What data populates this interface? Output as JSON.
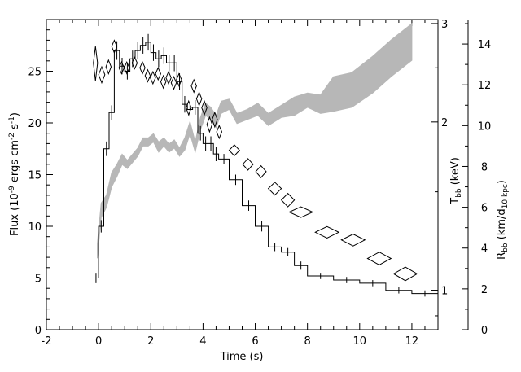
{
  "chart_data": {
    "type": "line",
    "xlabel": "Time (s)",
    "ylabel": {
      "pre": "Flux (10",
      "exp1": "-9",
      "mid1": " ergs cm",
      "exp2": "-2",
      "mid2": " s",
      "exp3": "-1",
      "post": ")"
    },
    "xlim": [
      -2,
      13
    ],
    "ylim": [
      0,
      30
    ],
    "x_ticks": [
      "-2",
      "0",
      "2",
      "4",
      "6",
      "8",
      "10",
      "12"
    ],
    "x_tick_values": [
      -2,
      0,
      2,
      4,
      6,
      8,
      10,
      12
    ],
    "y_ticks": [
      "0",
      "5",
      "10",
      "15",
      "20",
      "25"
    ],
    "y_tick_values": [
      0,
      5,
      10,
      15,
      20,
      25
    ],
    "right_axis_tbb": {
      "label": {
        "base": "T",
        "sub": "bb",
        "rest": " (keV)"
      },
      "scale": "log",
      "range": [
        0.85,
        3.05
      ],
      "ticks": [
        "1",
        "2",
        "3"
      ],
      "tick_values": [
        1,
        2,
        3
      ]
    },
    "right_axis_rbb": {
      "label": {
        "base": "R",
        "sub": "bb",
        "rest": " (km/d",
        "sub2": "10 kpc",
        "rest2": ")"
      },
      "range": [
        0,
        15.2
      ],
      "ticks": [
        "0",
        "2",
        "4",
        "6",
        "8",
        "10",
        "12",
        "14"
      ],
      "tick_values": [
        0,
        2,
        4,
        6,
        8,
        10,
        12,
        14
      ]
    },
    "series": [
      {
        "kind": "flux_step",
        "points": [
          [
            -0.2,
            0.0,
            5.0,
            0.5
          ],
          [
            0.0,
            0.2,
            10.0,
            0.6
          ],
          [
            0.2,
            0.4,
            17.5,
            0.7
          ],
          [
            0.4,
            0.6,
            21.0,
            0.7
          ],
          [
            0.6,
            0.8,
            27.0,
            0.9
          ],
          [
            0.8,
            1.0,
            25.5,
            0.8
          ],
          [
            1.0,
            1.2,
            25.0,
            0.8
          ],
          [
            1.2,
            1.4,
            26.2,
            0.8
          ],
          [
            1.4,
            1.6,
            27.0,
            0.8
          ],
          [
            1.6,
            1.8,
            27.5,
            0.8
          ],
          [
            1.8,
            2.0,
            27.8,
            0.8
          ],
          [
            2.0,
            2.2,
            26.8,
            0.8
          ],
          [
            2.2,
            2.4,
            26.2,
            0.8
          ],
          [
            2.4,
            2.6,
            26.5,
            0.8
          ],
          [
            2.6,
            2.8,
            25.8,
            0.8
          ],
          [
            2.8,
            3.0,
            25.8,
            0.8
          ],
          [
            3.0,
            3.2,
            24.0,
            0.8
          ],
          [
            3.2,
            3.4,
            21.8,
            0.8
          ],
          [
            3.4,
            3.6,
            21.3,
            0.7
          ],
          [
            3.6,
            3.8,
            21.5,
            0.7
          ],
          [
            3.8,
            4.0,
            19.0,
            0.7
          ],
          [
            4.0,
            4.2,
            18.0,
            0.7
          ],
          [
            4.2,
            4.4,
            18.0,
            0.7
          ],
          [
            4.4,
            4.6,
            17.0,
            0.7
          ],
          [
            4.6,
            5.0,
            16.5,
            0.5
          ],
          [
            5.0,
            5.5,
            14.5,
            0.5
          ],
          [
            5.5,
            6.0,
            12.0,
            0.5
          ],
          [
            6.0,
            6.5,
            10.0,
            0.5
          ],
          [
            6.5,
            7.0,
            8.0,
            0.4
          ],
          [
            7.0,
            7.5,
            7.5,
            0.4
          ],
          [
            7.5,
            8.0,
            6.2,
            0.4
          ],
          [
            8.0,
            9.0,
            5.2,
            0.3
          ],
          [
            9.0,
            10.0,
            4.8,
            0.3
          ],
          [
            10.0,
            11.0,
            4.5,
            0.3
          ],
          [
            11.0,
            12.0,
            3.8,
            0.3
          ],
          [
            12.0,
            13.0,
            3.5,
            0.3
          ]
        ]
      },
      {
        "kind": "rbb_band",
        "axis": "right_rbb",
        "points": [
          [
            -0.05,
            3.5,
            4.2
          ],
          [
            0.1,
            5.5,
            6.2
          ],
          [
            0.3,
            6.0,
            6.6
          ],
          [
            0.5,
            7.0,
            7.7
          ],
          [
            0.7,
            7.5,
            8.1
          ],
          [
            0.9,
            8.1,
            8.6
          ],
          [
            1.1,
            7.9,
            8.3
          ],
          [
            1.3,
            8.2,
            8.6
          ],
          [
            1.5,
            8.5,
            8.9
          ],
          [
            1.7,
            9.0,
            9.4
          ],
          [
            1.9,
            9.0,
            9.4
          ],
          [
            2.1,
            9.2,
            9.6
          ],
          [
            2.3,
            8.7,
            9.2
          ],
          [
            2.5,
            9.0,
            9.4
          ],
          [
            2.7,
            8.7,
            9.1
          ],
          [
            2.9,
            8.9,
            9.3
          ],
          [
            3.1,
            8.5,
            8.9
          ],
          [
            3.3,
            8.8,
            9.4
          ],
          [
            3.5,
            9.6,
            10.2
          ],
          [
            3.7,
            8.7,
            9.2
          ],
          [
            3.9,
            9.8,
            10.4
          ],
          [
            4.1,
            10.5,
            11.1
          ],
          [
            4.3,
            10.3,
            10.9
          ],
          [
            4.5,
            9.9,
            10.5
          ],
          [
            4.7,
            10.6,
            11.2
          ],
          [
            5.0,
            10.8,
            11.3
          ],
          [
            5.3,
            10.1,
            10.6
          ],
          [
            5.7,
            10.3,
            10.8
          ],
          [
            6.1,
            10.5,
            11.1
          ],
          [
            6.5,
            10.0,
            10.6
          ],
          [
            7.0,
            10.4,
            11.0
          ],
          [
            7.5,
            10.5,
            11.4
          ],
          [
            8.0,
            10.9,
            11.6
          ],
          [
            8.5,
            10.6,
            11.5
          ],
          [
            9.0,
            10.7,
            12.4
          ],
          [
            9.7,
            10.9,
            12.6
          ],
          [
            10.5,
            11.6,
            13.4
          ],
          [
            11.2,
            12.4,
            14.2
          ],
          [
            12.0,
            13.2,
            15.0
          ]
        ]
      },
      {
        "kind": "tbb_diamonds",
        "axis": "right_tbb",
        "points": [
          [
            -0.12,
            0.08,
            2.55,
            0.18
          ],
          [
            0.12,
            0.12,
            2.43,
            0.08
          ],
          [
            0.38,
            0.1,
            2.51,
            0.07
          ],
          [
            0.6,
            0.1,
            2.73,
            0.07
          ],
          [
            0.88,
            0.1,
            2.5,
            0.06
          ],
          [
            1.08,
            0.1,
            2.5,
            0.06
          ],
          [
            1.38,
            0.1,
            2.55,
            0.06
          ],
          [
            1.68,
            0.1,
            2.5,
            0.06
          ],
          [
            1.88,
            0.1,
            2.42,
            0.06
          ],
          [
            2.08,
            0.1,
            2.4,
            0.06
          ],
          [
            2.28,
            0.1,
            2.44,
            0.06
          ],
          [
            2.48,
            0.1,
            2.36,
            0.06
          ],
          [
            2.68,
            0.1,
            2.4,
            0.06
          ],
          [
            2.88,
            0.1,
            2.35,
            0.06
          ],
          [
            3.08,
            0.1,
            2.38,
            0.06
          ],
          [
            3.45,
            0.1,
            2.12,
            0.06
          ],
          [
            3.65,
            0.1,
            2.32,
            0.06
          ],
          [
            3.85,
            0.1,
            2.2,
            0.06
          ],
          [
            4.05,
            0.1,
            2.12,
            0.06
          ],
          [
            4.25,
            0.1,
            1.98,
            0.06
          ],
          [
            4.45,
            0.1,
            2.02,
            0.06
          ],
          [
            4.62,
            0.1,
            1.92,
            0.05
          ],
          [
            5.2,
            0.2,
            1.78,
            0.04
          ],
          [
            5.72,
            0.2,
            1.68,
            0.04
          ],
          [
            6.22,
            0.2,
            1.63,
            0.04
          ],
          [
            6.75,
            0.25,
            1.52,
            0.04
          ],
          [
            7.25,
            0.25,
            1.45,
            0.04
          ],
          [
            7.75,
            0.45,
            1.38,
            0.03
          ],
          [
            8.75,
            0.45,
            1.27,
            0.03
          ],
          [
            9.75,
            0.45,
            1.23,
            0.03
          ],
          [
            10.75,
            0.45,
            1.14,
            0.03
          ],
          [
            11.75,
            0.45,
            1.07,
            0.03
          ]
        ]
      }
    ],
    "colors": {
      "axes": "#000000",
      "band": "#b7b7b7",
      "line": "#000000"
    },
    "grid": false,
    "legend": "none"
  }
}
